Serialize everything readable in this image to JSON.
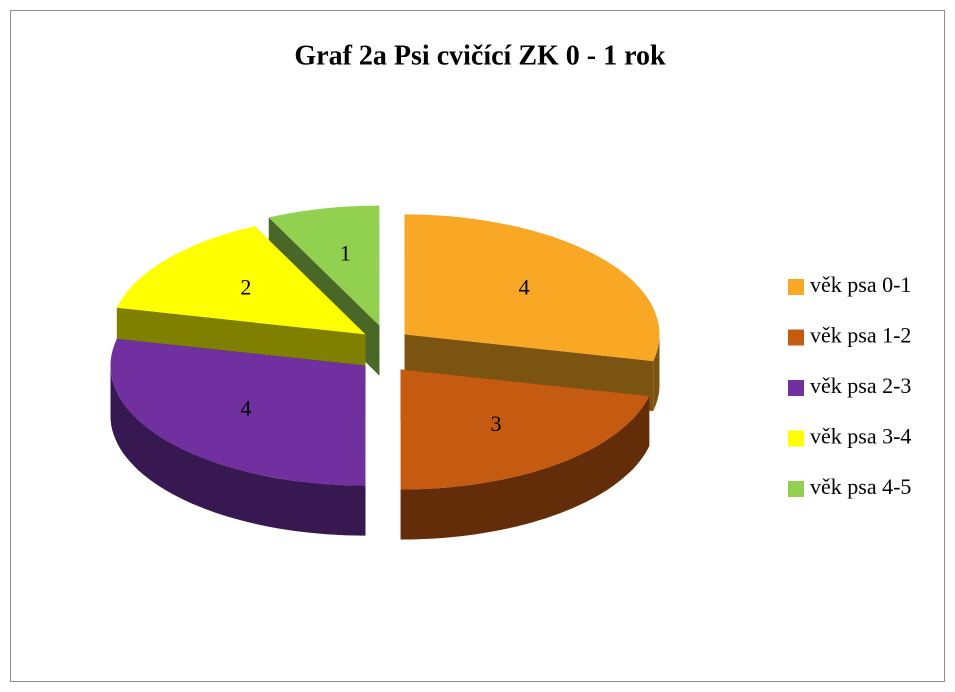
{
  "chart_data": {
    "type": "pie",
    "title": "Graf 2a Psi cvičící ZK 0 - 1 rok",
    "categories": [
      "věk psa 0-1",
      "věk psa 1-2",
      "věk psa 2-3",
      "věk psa 3-4",
      "věk psa 4-5"
    ],
    "values": [
      4,
      3,
      4,
      2,
      1
    ],
    "colors": [
      "#f9a825",
      "#c55a11",
      "#7030a0",
      "#ffff00",
      "#92d050"
    ],
    "legend": "right"
  }
}
